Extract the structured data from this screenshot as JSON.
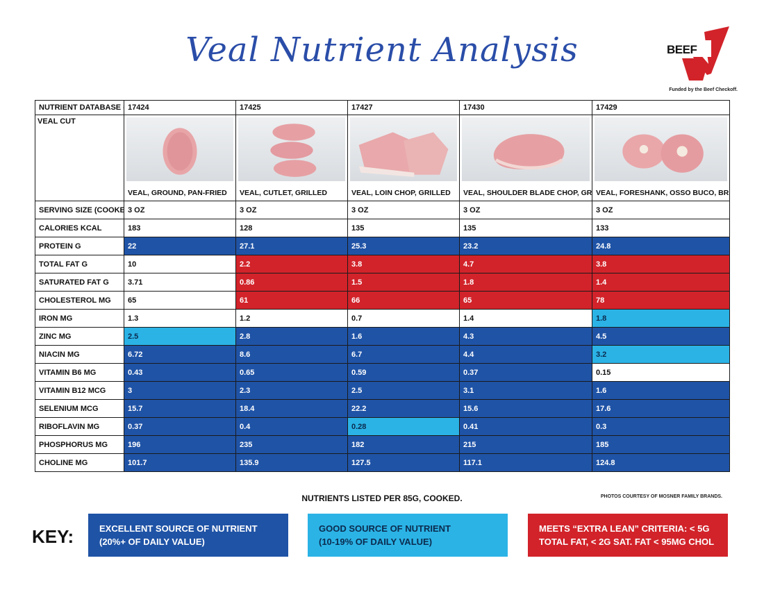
{
  "title": "Veal Nutrient Analysis",
  "logo": {
    "text": "BEEF",
    "funded": "Funded by the Beef Checkoff.",
    "colors": {
      "check": "#d2232a"
    }
  },
  "colors": {
    "excellent": "#1f53a6",
    "good": "#2bb3e6",
    "lean": "#d2232a"
  },
  "table": {
    "database_label": "NUTRIENT DATABASE #",
    "cut_label": "VEAL CUT",
    "columns": [
      {
        "id": "17424",
        "name": "VEAL, GROUND, PAN-FRIED",
        "photo": "ground-veal-photo"
      },
      {
        "id": "17425",
        "name": "VEAL, CUTLET, GRILLED",
        "photo": "cutlet-photo"
      },
      {
        "id": "17427",
        "name": "VEAL, LOIN CHOP, GRILLED",
        "photo": "loin-chop-photo"
      },
      {
        "id": "17430",
        "name": "VEAL, SHOULDER BLADE CHOP, GRILLED",
        "photo": "shoulder-chop-photo"
      },
      {
        "id": "17429",
        "name": "VEAL, FORESHANK, OSSO BUCO, BRAISED",
        "photo": "osso-buco-photo"
      }
    ],
    "rows": [
      {
        "label": "SERVING SIZE (COOKED)",
        "values": [
          "3 OZ",
          "3 OZ",
          "3 OZ",
          "3 OZ",
          "3 OZ"
        ],
        "classes": [
          "",
          "",
          "",
          "",
          ""
        ]
      },
      {
        "label": "CALORIES KCAL",
        "values": [
          "183",
          "128",
          "135",
          "135",
          "133"
        ],
        "classes": [
          "",
          "",
          "",
          "",
          ""
        ]
      },
      {
        "label": "PROTEIN G",
        "values": [
          "22",
          "27.1",
          "25.3",
          "23.2",
          "24.8"
        ],
        "classes": [
          "excellent",
          "excellent",
          "excellent",
          "excellent",
          "excellent"
        ]
      },
      {
        "label": "TOTAL FAT G",
        "values": [
          "10",
          "2.2",
          "3.8",
          "4.7",
          "3.8"
        ],
        "classes": [
          "",
          "lean",
          "lean",
          "lean",
          "lean"
        ]
      },
      {
        "label": "SATURATED FAT G",
        "values": [
          "3.71",
          "0.86",
          "1.5",
          "1.8",
          "1.4"
        ],
        "classes": [
          "",
          "lean",
          "lean",
          "lean",
          "lean"
        ]
      },
      {
        "label": "CHOLESTEROL MG",
        "values": [
          "65",
          "61",
          "66",
          "65",
          "78"
        ],
        "classes": [
          "",
          "lean",
          "lean",
          "lean",
          "lean"
        ]
      },
      {
        "label": "IRON MG",
        "values": [
          "1.3",
          "1.2",
          "0.7",
          "1.4",
          "1.8"
        ],
        "classes": [
          "",
          "",
          "",
          "",
          "good"
        ]
      },
      {
        "label": "ZINC MG",
        "values": [
          "2.5",
          "2.8",
          "1.6",
          "4.3",
          "4.5"
        ],
        "classes": [
          "good",
          "excellent",
          "excellent",
          "excellent",
          "excellent"
        ]
      },
      {
        "label": "NIACIN MG",
        "values": [
          "6.72",
          "8.6",
          "6.7",
          "4.4",
          "3.2"
        ],
        "classes": [
          "excellent",
          "excellent",
          "excellent",
          "excellent",
          "good"
        ]
      },
      {
        "label": "VITAMIN B6 MG",
        "values": [
          "0.43",
          "0.65",
          "0.59",
          "0.37",
          "0.15"
        ],
        "classes": [
          "excellent",
          "excellent",
          "excellent",
          "excellent",
          ""
        ]
      },
      {
        "label": "VITAMIN B12 MCG",
        "values": [
          "3",
          "2.3",
          "2.5",
          "3.1",
          "1.6"
        ],
        "classes": [
          "excellent",
          "excellent",
          "excellent",
          "excellent",
          "excellent"
        ]
      },
      {
        "label": "SELENIUM MCG",
        "values": [
          "15.7",
          "18.4",
          "22.2",
          "15.6",
          "17.6"
        ],
        "classes": [
          "excellent",
          "excellent",
          "excellent",
          "excellent",
          "excellent"
        ]
      },
      {
        "label": "RIBOFLAVIN MG",
        "values": [
          "0.37",
          "0.4",
          "0.28",
          "0.41",
          "0.3"
        ],
        "classes": [
          "excellent",
          "excellent",
          "good",
          "excellent",
          "excellent"
        ]
      },
      {
        "label": "PHOSPHORUS MG",
        "values": [
          "196",
          "235",
          "182",
          "215",
          "185"
        ],
        "classes": [
          "excellent",
          "excellent",
          "excellent",
          "excellent",
          "excellent"
        ]
      },
      {
        "label": "CHOLINE MG",
        "values": [
          "101.7",
          "135.9",
          "127.5",
          "117.1",
          "124.8"
        ],
        "classes": [
          "excellent",
          "excellent",
          "excellent",
          "excellent",
          "excellent"
        ]
      }
    ]
  },
  "note": "NUTRIENTS LISTED PER 85G, COOKED.",
  "credit": "PHOTOS COURTESY OF MOSNER FAMILY BRANDS.",
  "key": {
    "label": "KEY:",
    "excellent": {
      "line1": "EXCELLENT SOURCE OF NUTRIENT",
      "line2": "(20%+ OF DAILY VALUE)"
    },
    "good": {
      "line1": "GOOD SOURCE OF NUTRIENT",
      "line2": "(10-19% OF DAILY VALUE)"
    },
    "lean": {
      "line1": "MEETS “EXTRA LEAN” CRITERIA: < 5G",
      "line2": "TOTAL FAT, < 2G SAT. FAT < 95MG CHOL"
    }
  }
}
